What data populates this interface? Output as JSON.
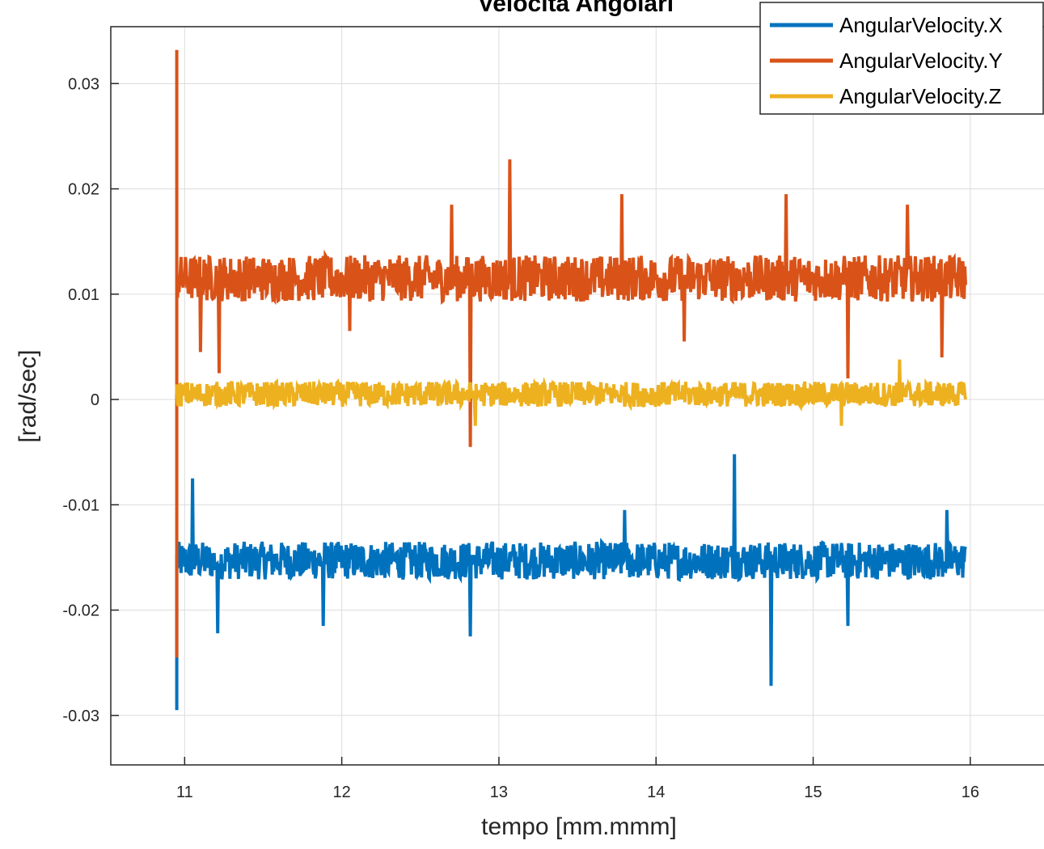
{
  "chart_data": {
    "type": "line",
    "title": "Velocità Angolari",
    "xlabel": "tempo [mm.mmm]",
    "ylabel": "[rad/sec]",
    "xlim": [
      10.53,
      16.5
    ],
    "ylim": [
      -0.0347,
      0.0354
    ],
    "xticks": [
      11,
      12,
      13,
      14,
      15,
      16
    ],
    "xtick_labels": [
      "11",
      "12",
      "13",
      "14",
      "15",
      "16"
    ],
    "yticks": [
      -0.03,
      -0.02,
      -0.01,
      0,
      0.01,
      0.02,
      0.03
    ],
    "ytick_labels": [
      "-0.03",
      "-0.02",
      "-0.01",
      "0",
      "0.01",
      "0.02",
      "0.03"
    ],
    "grid": true,
    "legend_position": "top-right",
    "x_range": [
      10.95,
      15.97
    ],
    "series": [
      {
        "name": "AngularVelocity.X",
        "color": "#0072BD",
        "baseline": -0.0153,
        "noise_amplitude": 0.0018,
        "start_values": [
          -0.0295,
          -0.0245
        ],
        "spikes": [
          {
            "x": 11.05,
            "y": -0.0075
          },
          {
            "x": 11.21,
            "y": -0.0222
          },
          {
            "x": 11.88,
            "y": -0.0215
          },
          {
            "x": 12.82,
            "y": -0.0225
          },
          {
            "x": 13.8,
            "y": -0.0105
          },
          {
            "x": 14.5,
            "y": -0.0052
          },
          {
            "x": 14.73,
            "y": -0.0272
          },
          {
            "x": 15.22,
            "y": -0.0215
          },
          {
            "x": 15.85,
            "y": -0.0105
          }
        ]
      },
      {
        "name": "AngularVelocity.Y",
        "color": "#D95319",
        "baseline": 0.0115,
        "noise_amplitude": 0.0022,
        "start_values": [
          0.0332,
          -0.0245
        ],
        "spikes": [
          {
            "x": 11.1,
            "y": 0.0045
          },
          {
            "x": 11.22,
            "y": 0.0025
          },
          {
            "x": 12.05,
            "y": 0.0065
          },
          {
            "x": 12.7,
            "y": 0.0185
          },
          {
            "x": 12.82,
            "y": -0.0045
          },
          {
            "x": 13.07,
            "y": 0.0228
          },
          {
            "x": 13.78,
            "y": 0.0195
          },
          {
            "x": 14.18,
            "y": 0.0055
          },
          {
            "x": 14.83,
            "y": 0.0195
          },
          {
            "x": 15.22,
            "y": 0.002
          },
          {
            "x": 15.6,
            "y": 0.0185
          },
          {
            "x": 15.82,
            "y": 0.004
          }
        ]
      },
      {
        "name": "AngularVelocity.Z",
        "color": "#EDB120",
        "baseline": 0.0005,
        "noise_amplitude": 0.0012,
        "start_values": [
          0.0005,
          0.0005
        ],
        "spikes": [
          {
            "x": 12.85,
            "y": -0.0025
          },
          {
            "x": 15.18,
            "y": -0.0025
          },
          {
            "x": 15.55,
            "y": 0.0038
          }
        ]
      }
    ]
  }
}
